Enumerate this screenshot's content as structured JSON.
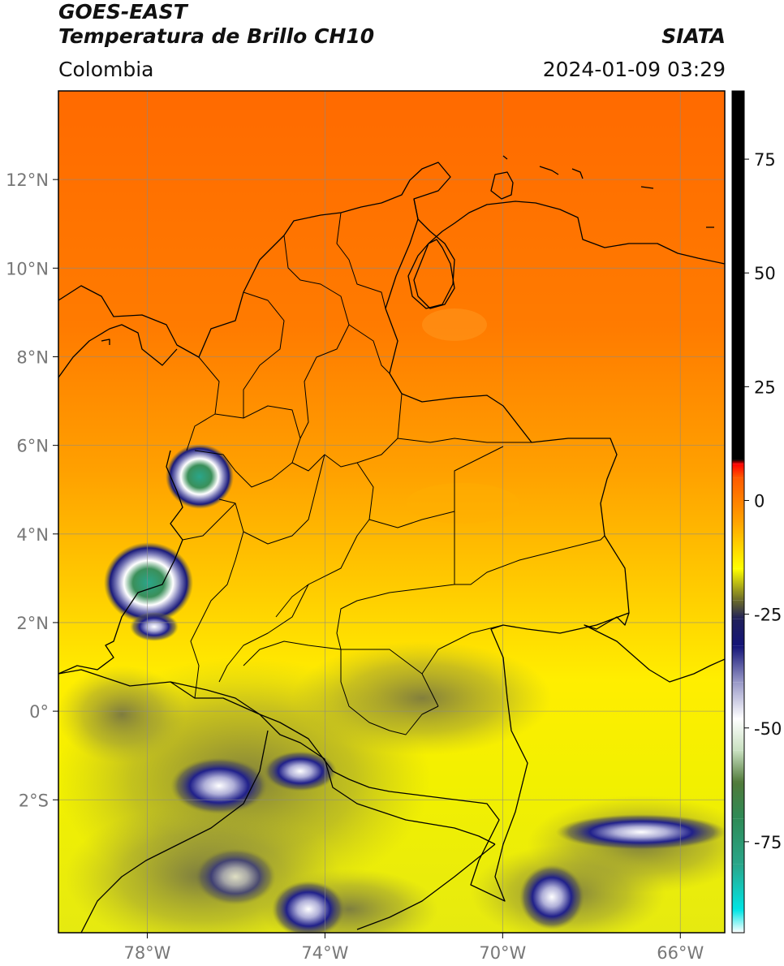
{
  "header": {
    "satellite": "GOES-EAST",
    "product": "Temperatura de Brillo CH10",
    "organization": "SIATA",
    "region": "Colombia",
    "timestamp": "2024-01-09 03:29"
  },
  "map": {
    "lat_range": [
      -5.0,
      14.0
    ],
    "lon_range": [
      -80.0,
      -65.0
    ],
    "lat_ticks": [
      {
        "value": 12,
        "label": "12°N"
      },
      {
        "value": 10,
        "label": "10°N"
      },
      {
        "value": 8,
        "label": "8°N"
      },
      {
        "value": 6,
        "label": "6°N"
      },
      {
        "value": 4,
        "label": "4°N"
      },
      {
        "value": 2,
        "label": "2°N"
      },
      {
        "value": 0,
        "label": "0°"
      },
      {
        "value": -2,
        "label": "2°S"
      }
    ],
    "lon_ticks": [
      {
        "value": -78,
        "label": "78°W"
      },
      {
        "value": -74,
        "label": "74°W"
      },
      {
        "value": -70,
        "label": "70°W"
      },
      {
        "value": -66,
        "label": "66°W"
      }
    ],
    "grid": true,
    "cloud_systems": [
      {
        "lon": -77.0,
        "lat": 5.5,
        "min_temp": -80
      },
      {
        "lon": -77.8,
        "lat": 3.1,
        "min_temp": -85
      },
      {
        "lon": -76.6,
        "lat": -1.7,
        "min_temp": -55
      },
      {
        "lon": -66.6,
        "lat": -2.8,
        "min_temp": -55
      },
      {
        "lon": -75.0,
        "lat": -4.7,
        "min_temp": -55
      }
    ]
  },
  "colorbar": {
    "range": [
      -95,
      90
    ],
    "ticks": [
      {
        "value": 75,
        "label": "75"
      },
      {
        "value": 50,
        "label": "50"
      },
      {
        "value": 25,
        "label": "25"
      },
      {
        "value": 0,
        "label": "0"
      },
      {
        "value": -25,
        "label": "-25"
      },
      {
        "value": -50,
        "label": "-50"
      },
      {
        "value": -75,
        "label": "-75"
      }
    ],
    "stops": [
      {
        "value": -95,
        "color": "#ffffff"
      },
      {
        "value": -90,
        "color": "#00e5e5"
      },
      {
        "value": -80,
        "color": "#2aa68a"
      },
      {
        "value": -70,
        "color": "#2e8b57"
      },
      {
        "value": -62,
        "color": "#507a3a"
      },
      {
        "value": -55,
        "color": "#c8e0c0"
      },
      {
        "value": -48,
        "color": "#ffffff"
      },
      {
        "value": -40,
        "color": "#9a9ac8"
      },
      {
        "value": -32,
        "color": "#141478"
      },
      {
        "value": -26,
        "color": "#20205a"
      },
      {
        "value": -22,
        "color": "#6a6a2a"
      },
      {
        "value": -15,
        "color": "#ffff00"
      },
      {
        "value": -5,
        "color": "#ffa500"
      },
      {
        "value": 5,
        "color": "#ff5a00"
      },
      {
        "value": 8,
        "color": "#ff0000"
      },
      {
        "value": 9,
        "color": "#000000"
      },
      {
        "value": 90,
        "color": "#000000"
      }
    ]
  }
}
